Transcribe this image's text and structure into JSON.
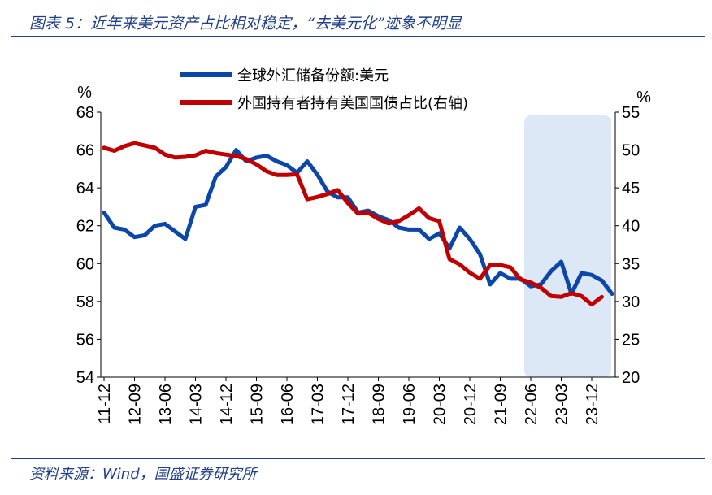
{
  "title": "图表 5：近年来美元资产占比相对稳定，“去美元化”迹象不明显",
  "source": "资料来源：Wind，国盛证券研究所",
  "colors": {
    "title": "#1f3f86",
    "series_reserves": "#0b46a8",
    "series_treasury": "#c00000",
    "highlight": "#dce8f5"
  },
  "chart_data": {
    "type": "line",
    "xlabel": "",
    "left_axis": {
      "unit": "%",
      "ylim": [
        54,
        68
      ],
      "ticks": [
        "54",
        "56",
        "58",
        "60",
        "62",
        "64",
        "66",
        "68"
      ]
    },
    "right_axis": {
      "unit": "%",
      "ylim": [
        20,
        55
      ],
      "ticks": [
        "20",
        "25",
        "30",
        "35",
        "40",
        "45",
        "50",
        "55"
      ]
    },
    "x_tick_labels": [
      "11-12",
      "12-09",
      "13-06",
      "14-03",
      "14-12",
      "15-09",
      "16-06",
      "17-03",
      "17-12",
      "18-09",
      "19-06",
      "20-03",
      "20-12",
      "21-09",
      "22-06",
      "23-03",
      "23-12"
    ],
    "highlight_range": [
      "22-06",
      "23-12"
    ],
    "series": [
      {
        "name": "全球外汇储备份额:美元",
        "axis": "left",
        "values": [
          62.7,
          61.9,
          61.8,
          61.4,
          61.5,
          62.0,
          62.1,
          61.7,
          61.3,
          63.0,
          63.1,
          64.6,
          65.1,
          66.0,
          65.4,
          65.6,
          65.7,
          65.4,
          65.2,
          64.8,
          65.4,
          64.7,
          63.8,
          63.5,
          63.5,
          62.7,
          62.8,
          62.5,
          62.3,
          61.9,
          61.8,
          61.8,
          61.3,
          61.6,
          60.8,
          61.9,
          61.3,
          60.5,
          58.9,
          59.5,
          59.2,
          59.2,
          58.8,
          58.9,
          59.6,
          60.1,
          58.4,
          59.5,
          59.4,
          59.1,
          58.4
        ]
      },
      {
        "name": "外国持有者持有美国国债占比(右轴)",
        "axis": "right",
        "values": [
          50.3,
          49.9,
          50.5,
          50.9,
          50.6,
          50.3,
          49.4,
          49.0,
          49.1,
          49.3,
          49.9,
          49.6,
          49.4,
          49.2,
          48.8,
          48.1,
          47.2,
          46.7,
          46.7,
          46.8,
          43.5,
          43.8,
          44.2,
          44.7,
          43.0,
          41.6,
          41.7,
          40.9,
          40.3,
          40.6,
          41.4,
          42.3,
          41.0,
          40.6,
          35.6,
          34.9,
          33.8,
          33.0,
          34.8,
          34.8,
          34.5,
          32.9,
          32.5,
          31.8,
          30.7,
          30.6,
          31.1,
          30.7,
          29.6,
          30.6
        ]
      }
    ]
  }
}
